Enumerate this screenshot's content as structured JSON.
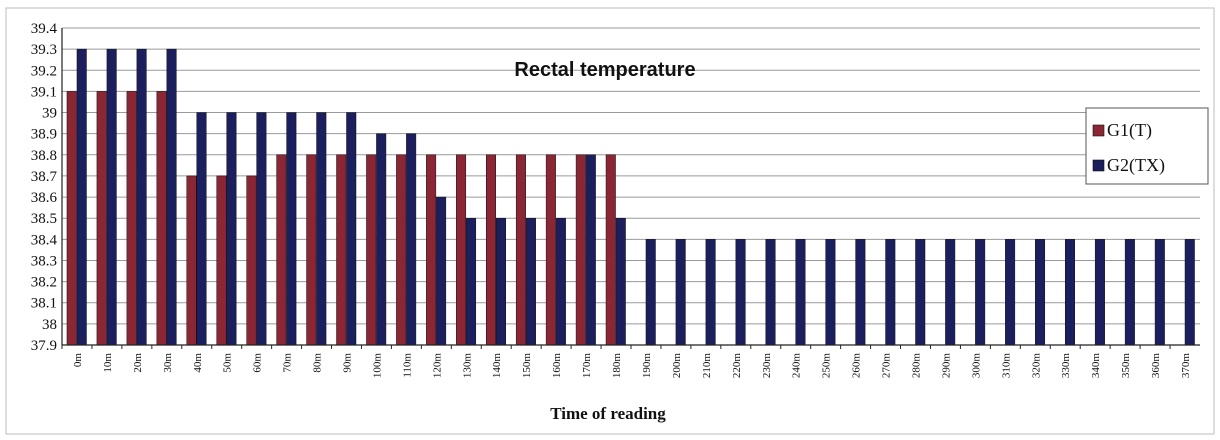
{
  "chart_data": {
    "type": "bar",
    "title": "Rectal temperature",
    "xlabel": "Time of reading",
    "ylabel": "",
    "ylim": [
      37.9,
      39.4
    ],
    "ytick_step": 0.1,
    "yticks": [
      "37.9",
      "38",
      "38.1",
      "38.2",
      "38.3",
      "38.4",
      "38.5",
      "38.6",
      "38.7",
      "38.8",
      "38.9",
      "39",
      "39.1",
      "39.2",
      "39.3",
      "39.4"
    ],
    "grid": true,
    "legend_position": "right",
    "categories": [
      "0m",
      "10m",
      "20m",
      "30m",
      "40m",
      "50m",
      "60m",
      "70m",
      "80m",
      "90m",
      "100m",
      "110m",
      "120m",
      "130m",
      "140m",
      "150m",
      "160m",
      "170m",
      "180m",
      "190m",
      "200m",
      "210m",
      "220m",
      "230m",
      "240m",
      "250m",
      "260m",
      "270m",
      "280m",
      "290m",
      "300m",
      "310m",
      "320m",
      "330m",
      "340m",
      "350m",
      "360m",
      "370m"
    ],
    "series": [
      {
        "name": "G1(T)",
        "color": "#8B2635",
        "values": [
          39.1,
          39.1,
          39.1,
          39.1,
          38.7,
          38.7,
          38.7,
          38.8,
          38.8,
          38.8,
          38.8,
          38.8,
          38.8,
          38.8,
          38.8,
          38.8,
          38.8,
          38.8,
          38.8,
          null,
          null,
          null,
          null,
          null,
          null,
          null,
          null,
          null,
          null,
          null,
          null,
          null,
          null,
          null,
          null,
          null,
          null,
          null
        ]
      },
      {
        "name": "G2(TX)",
        "color": "#1B1F5E",
        "values": [
          39.3,
          39.3,
          39.3,
          39.3,
          39.0,
          39.0,
          39.0,
          39.0,
          39.0,
          39.0,
          38.9,
          38.9,
          38.6,
          38.5,
          38.5,
          38.5,
          38.5,
          38.8,
          38.5,
          38.4,
          38.4,
          38.4,
          38.4,
          38.4,
          38.4,
          38.4,
          38.4,
          38.4,
          38.4,
          38.4,
          38.4,
          38.4,
          38.4,
          38.4,
          38.4,
          38.4,
          38.4,
          38.4
        ]
      }
    ]
  }
}
